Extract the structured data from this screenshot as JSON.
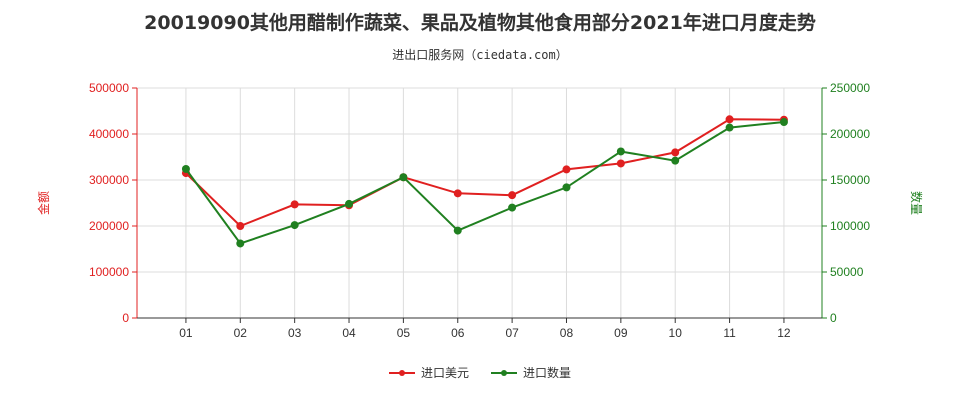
{
  "chart_data": {
    "type": "line",
    "title": "20019090其他用醋制作蔬菜、果品及植物其他食用部分2021年进口月度走势",
    "subtitle": "进出口服务网（ciedata.com）",
    "categories": [
      "01",
      "02",
      "03",
      "04",
      "05",
      "06",
      "07",
      "08",
      "09",
      "10",
      "11",
      "12"
    ],
    "y_left": {
      "label": "金额",
      "ylim": [
        0,
        500000
      ],
      "ticks": [
        "0",
        "100000",
        "200000",
        "300000",
        "400000",
        "500000"
      ],
      "color": "#e02020"
    },
    "y_right": {
      "label": "数量",
      "ylim": [
        0,
        250000
      ],
      "ticks": [
        "0",
        "50000",
        "100000",
        "150000",
        "200000",
        "250000"
      ],
      "color": "#208020"
    },
    "series": [
      {
        "name": "进口美元",
        "axis": "left",
        "color": "#e02020",
        "values": [
          315000,
          200000,
          247000,
          245000,
          306000,
          271000,
          267000,
          323000,
          336000,
          360000,
          432000,
          431000
        ]
      },
      {
        "name": "进口数量",
        "axis": "right",
        "color": "#208020",
        "values": [
          162000,
          81000,
          101000,
          124000,
          153000,
          95000,
          120000,
          142000,
          181000,
          171000,
          207000,
          213000
        ]
      }
    ],
    "grid": true,
    "legend_position": "bottom"
  }
}
